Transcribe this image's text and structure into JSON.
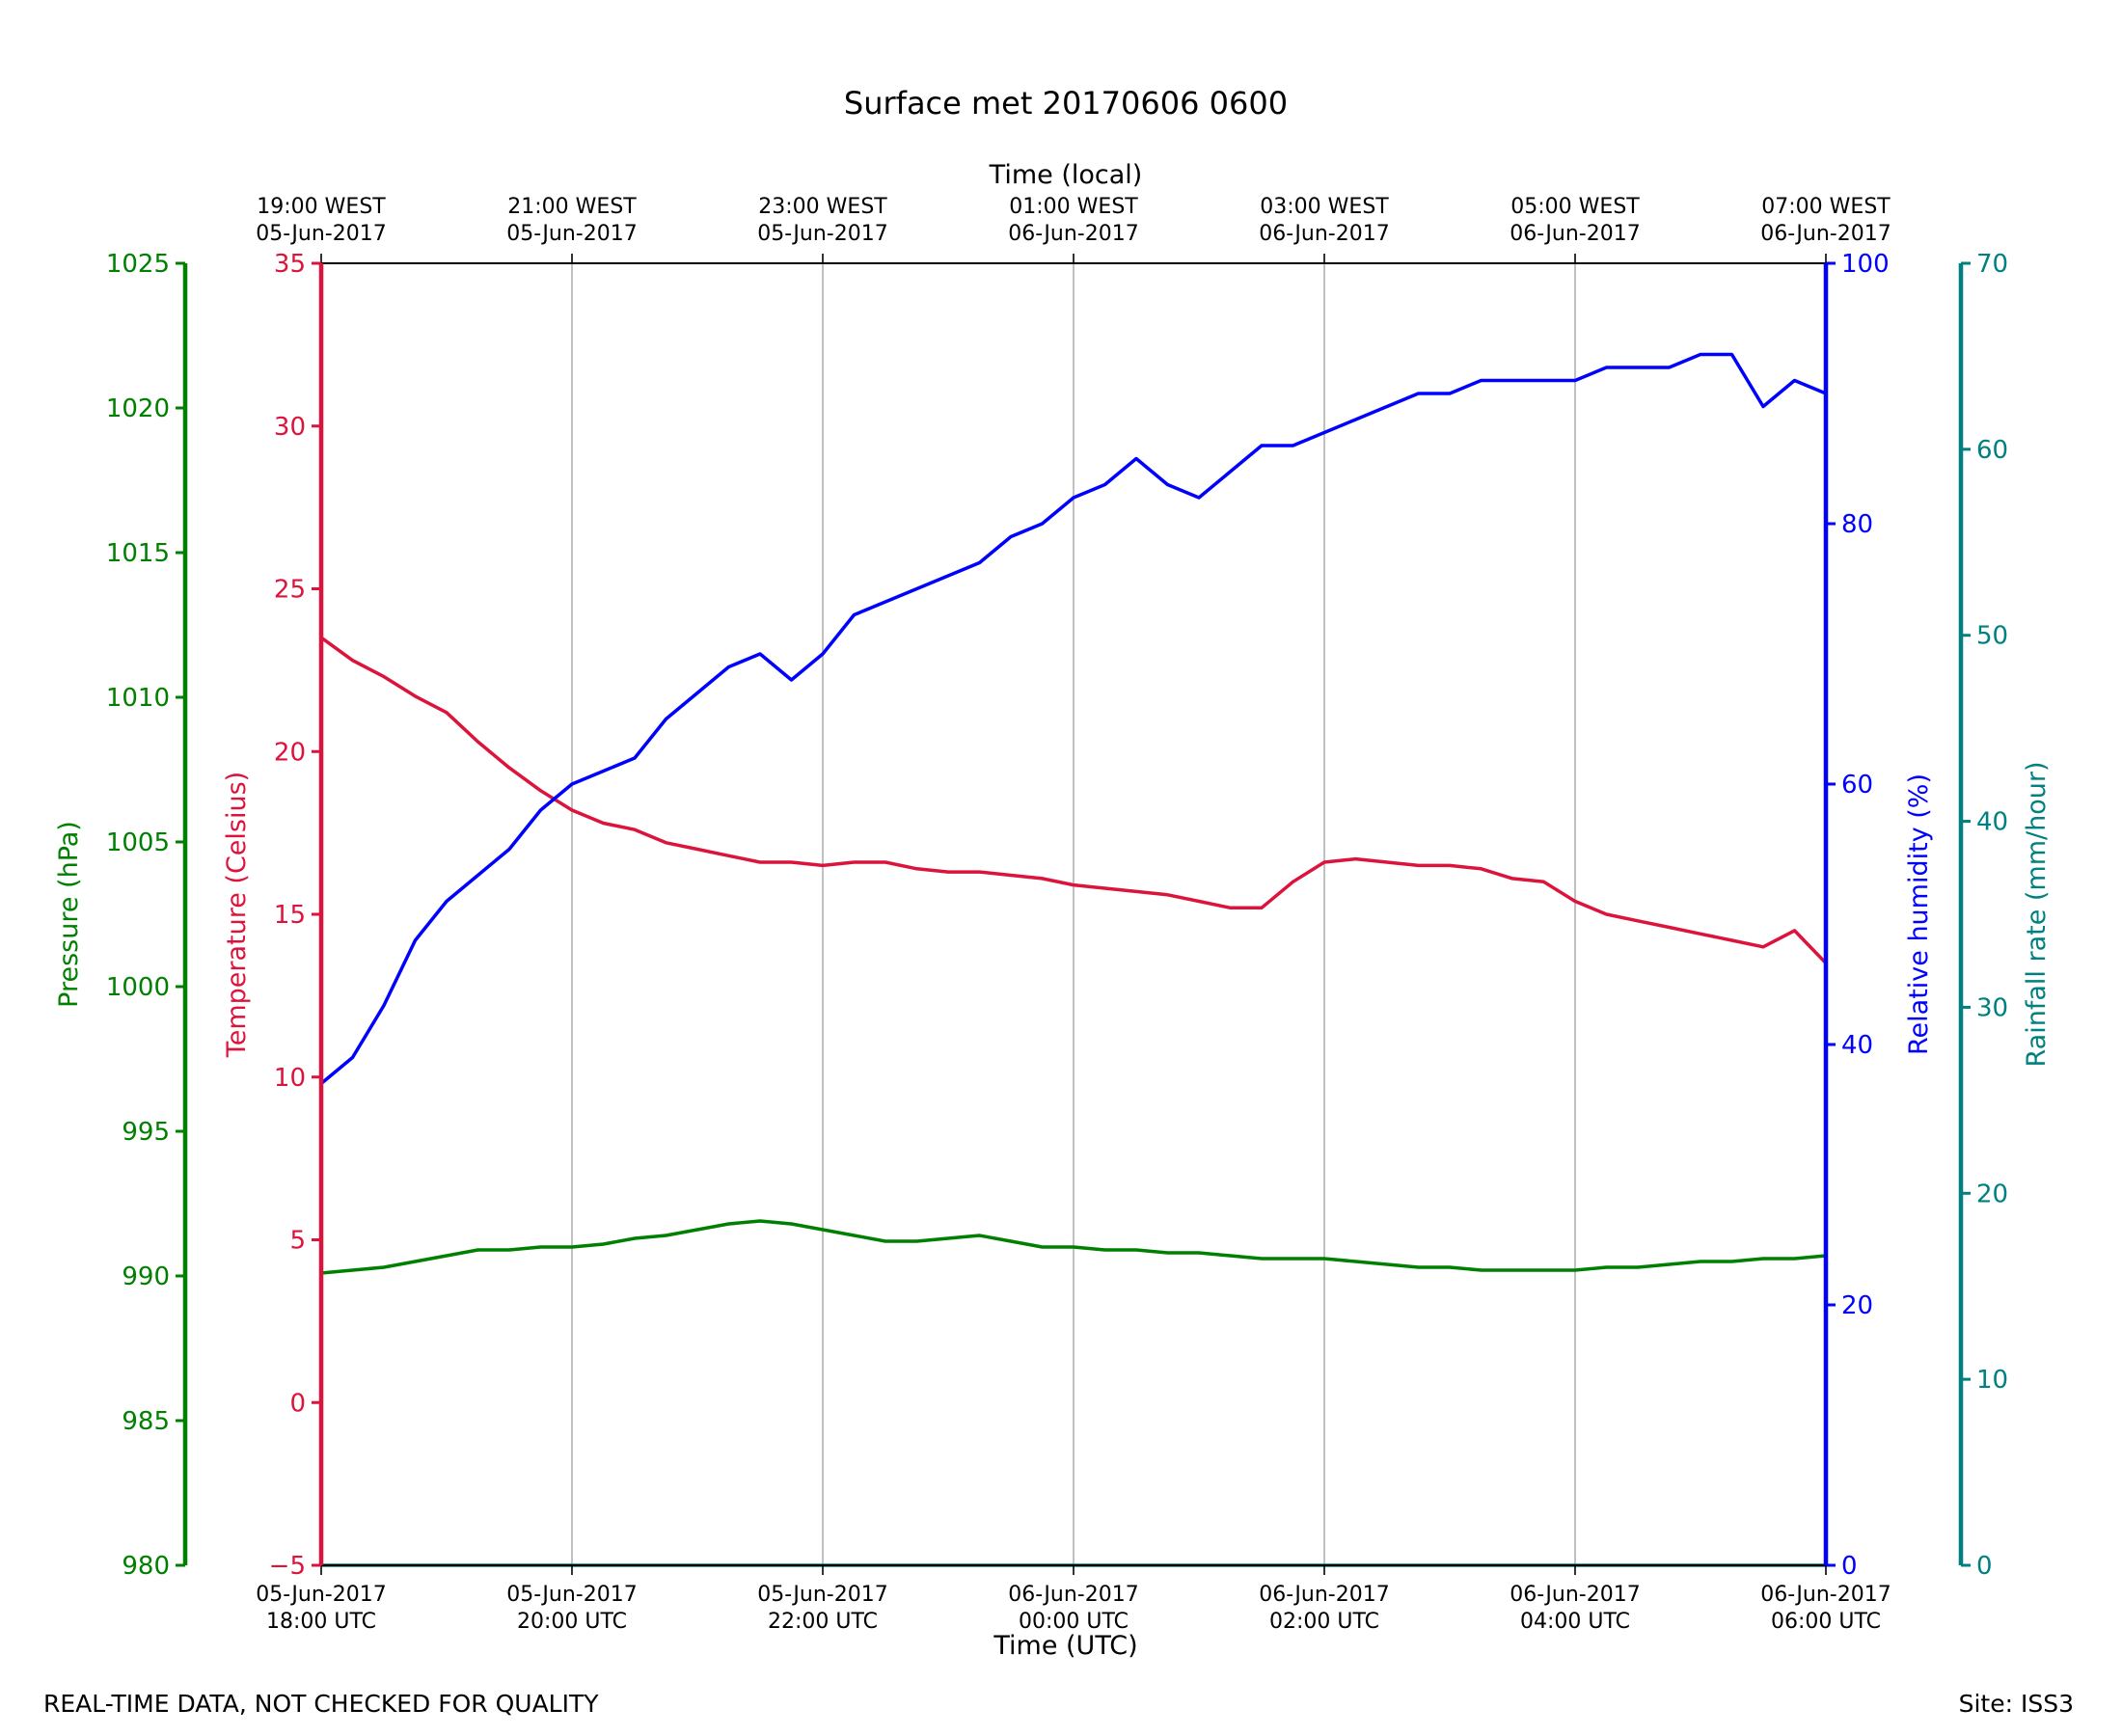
{
  "chart_data": {
    "type": "line",
    "title": "Surface met 20170606 0600",
    "x_top_label": "Time (local)",
    "xlabel": "Time (UTC)",
    "x_range_hours": [
      0,
      12
    ],
    "x_ticks_bottom": [
      [
        "05-Jun-2017",
        "18:00 UTC"
      ],
      [
        "05-Jun-2017",
        "20:00 UTC"
      ],
      [
        "05-Jun-2017",
        "22:00 UTC"
      ],
      [
        "06-Jun-2017",
        "00:00 UTC"
      ],
      [
        "06-Jun-2017",
        "02:00 UTC"
      ],
      [
        "06-Jun-2017",
        "04:00 UTC"
      ],
      [
        "06-Jun-2017",
        "06:00 UTC"
      ]
    ],
    "x_ticks_top": [
      [
        "19:00 WEST",
        "05-Jun-2017"
      ],
      [
        "21:00 WEST",
        "05-Jun-2017"
      ],
      [
        "23:00 WEST",
        "05-Jun-2017"
      ],
      [
        "01:00 WEST",
        "06-Jun-2017"
      ],
      [
        "03:00 WEST",
        "06-Jun-2017"
      ],
      [
        "05:00 WEST",
        "06-Jun-2017"
      ],
      [
        "07:00 WEST",
        "06-Jun-2017"
      ]
    ],
    "grid": "vertical",
    "axes": {
      "pressure": {
        "label": "Pressure (hPa)",
        "range": [
          980,
          1025
        ],
        "ticks": [
          980,
          985,
          990,
          995,
          1000,
          1005,
          1010,
          1015,
          1020,
          1025
        ],
        "color": "#008000"
      },
      "temperature": {
        "label": "Temperature (Celsius)",
        "range": [
          -5,
          35
        ],
        "ticks": [
          -5,
          0,
          5,
          10,
          15,
          20,
          25,
          30,
          35
        ],
        "tick_text": [
          "−5",
          "0",
          "5",
          "10",
          "15",
          "20",
          "25",
          "30",
          "35"
        ],
        "color": "#dc143c"
      },
      "humidity": {
        "label": "Relative humidity (%)",
        "range": [
          0,
          100
        ],
        "ticks": [
          0,
          20,
          40,
          60,
          80,
          100
        ],
        "color": "#0000ff"
      },
      "rainfall": {
        "label": "Rainfall rate (mm/hour)",
        "range": [
          0,
          70
        ],
        "ticks": [
          0,
          10,
          20,
          30,
          40,
          50,
          60,
          70
        ],
        "color": "#008080"
      }
    },
    "series": [
      {
        "key": "temperature",
        "axis": "temperature",
        "color": "#dc143c",
        "x": [
          0,
          0.25,
          0.5,
          0.75,
          1,
          1.25,
          1.5,
          1.75,
          2,
          2.25,
          2.5,
          2.75,
          3,
          3.25,
          3.5,
          3.75,
          4,
          4.25,
          4.5,
          4.75,
          5,
          5.25,
          5.5,
          5.75,
          6,
          6.25,
          6.5,
          6.75,
          7,
          7.25,
          7.5,
          7.75,
          8,
          8.25,
          8.5,
          8.75,
          9,
          9.25,
          9.5,
          9.75,
          10,
          10.25,
          10.5,
          10.75,
          11,
          11.25,
          11.5,
          11.75,
          12
        ],
        "y": [
          23.5,
          22.8,
          22.3,
          21.7,
          21.2,
          20.3,
          19.5,
          18.8,
          18.2,
          17.8,
          17.6,
          17.2,
          17.0,
          16.8,
          16.6,
          16.6,
          16.5,
          16.6,
          16.6,
          16.4,
          16.3,
          16.3,
          16.2,
          16.1,
          15.9,
          15.8,
          15.7,
          15.6,
          15.4,
          15.2,
          15.2,
          16.0,
          16.6,
          16.7,
          16.6,
          16.5,
          16.5,
          16.4,
          16.1,
          16.0,
          15.4,
          15.0,
          14.8,
          14.6,
          14.4,
          14.2,
          14.0,
          14.5,
          13.5
        ]
      },
      {
        "key": "humidity",
        "axis": "humidity",
        "color": "#0000ff",
        "x": [
          0,
          0.25,
          0.5,
          0.75,
          1,
          1.25,
          1.5,
          1.75,
          2,
          2.25,
          2.5,
          2.75,
          3,
          3.25,
          3.5,
          3.75,
          4,
          4.25,
          4.5,
          4.75,
          5,
          5.25,
          5.5,
          5.75,
          6,
          6.25,
          6.5,
          6.75,
          7,
          7.25,
          7.5,
          7.75,
          8,
          8.25,
          8.5,
          8.75,
          9,
          9.25,
          9.5,
          9.75,
          10,
          10.25,
          10.5,
          10.75,
          11,
          11.25,
          11.5,
          11.75,
          12
        ],
        "y": [
          37,
          39,
          43,
          48,
          51,
          53,
          55,
          58,
          60,
          61,
          62,
          65,
          67,
          69,
          70,
          68,
          70,
          73,
          74,
          75,
          76,
          77,
          79,
          80,
          82,
          83,
          85,
          83,
          82,
          84,
          86,
          86,
          87,
          88,
          89,
          90,
          90,
          91,
          91,
          91,
          91,
          92,
          92,
          92,
          93,
          93,
          89,
          91,
          90
        ]
      },
      {
        "key": "pressure",
        "axis": "pressure",
        "color": "#008000",
        "x": [
          0,
          0.25,
          0.5,
          0.75,
          1,
          1.25,
          1.5,
          1.75,
          2,
          2.25,
          2.5,
          2.75,
          3,
          3.25,
          3.5,
          3.75,
          4,
          4.25,
          4.5,
          4.75,
          5,
          5.25,
          5.5,
          5.75,
          6,
          6.25,
          6.5,
          6.75,
          7,
          7.25,
          7.5,
          7.75,
          8,
          8.25,
          8.5,
          8.75,
          9,
          9.25,
          9.5,
          9.75,
          10,
          10.25,
          10.5,
          10.75,
          11,
          11.25,
          11.5,
          11.75,
          12
        ],
        "y": [
          990.1,
          990.2,
          990.3,
          990.5,
          990.7,
          990.9,
          990.9,
          991.0,
          991.0,
          991.1,
          991.3,
          991.4,
          991.6,
          991.8,
          991.9,
          991.8,
          991.6,
          991.4,
          991.2,
          991.2,
          991.3,
          991.4,
          991.2,
          991.0,
          991.0,
          990.9,
          990.9,
          990.8,
          990.8,
          990.7,
          990.6,
          990.6,
          990.6,
          990.5,
          990.4,
          990.3,
          990.3,
          990.2,
          990.2,
          990.2,
          990.2,
          990.3,
          990.3,
          990.4,
          990.5,
          990.5,
          990.6,
          990.6,
          990.7
        ]
      },
      {
        "key": "rainfall",
        "axis": "rainfall",
        "color": "#008080",
        "x": [
          0,
          12
        ],
        "y": [
          0,
          0
        ]
      }
    ]
  },
  "footer": {
    "left": "REAL-TIME DATA, NOT CHECKED FOR QUALITY",
    "right": "Site: ISS3"
  }
}
